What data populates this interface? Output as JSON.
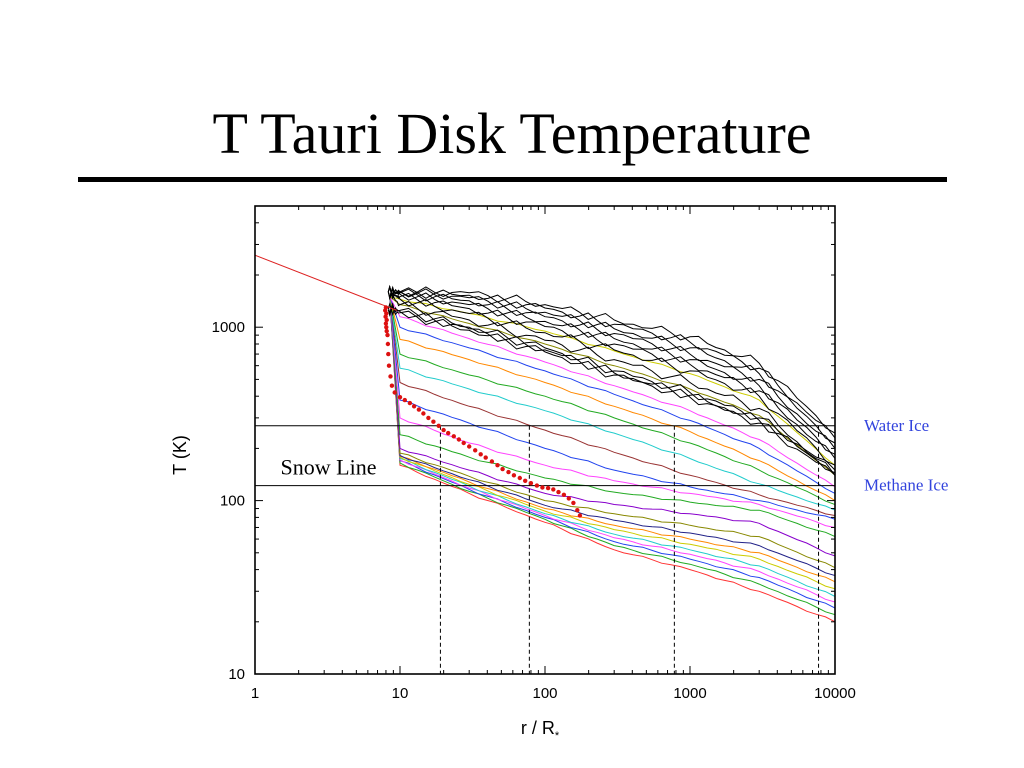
{
  "slide": {
    "title": "T Tauri Disk Temperature"
  },
  "colors": {
    "accent": "#3344dd",
    "marker": "#dd1111",
    "powerlaw": "#dd2222"
  },
  "chart_data": {
    "type": "line",
    "title": "",
    "xlabel": "r / R",
    "xlabel_subscript": "*",
    "ylabel": "T (K)",
    "xscale": "log",
    "yscale": "log",
    "xlim": [
      1,
      10000
    ],
    "ylim": [
      10,
      5000
    ],
    "x_ticks": [
      {
        "value": 1,
        "label": "1"
      },
      {
        "value": 10,
        "label": "10"
      },
      {
        "value": 100,
        "label": "100"
      },
      {
        "value": 1000,
        "label": "1000"
      },
      {
        "value": 10000,
        "label": "10000"
      }
    ],
    "y_ticks": [
      {
        "value": 10,
        "label": "10"
      },
      {
        "value": 100,
        "label": "100"
      },
      {
        "value": 1000,
        "label": "1000"
      }
    ],
    "hlines": [
      {
        "y": 270,
        "label": "Water Ice"
      },
      {
        "y": 122,
        "label": "Methane Ice"
      }
    ],
    "vlines": [
      19,
      78,
      780,
      7700
    ],
    "annotations": [
      {
        "text": "Snow Line",
        "x": 1.5,
        "y": 155
      }
    ],
    "powerlaw": {
      "x": [
        1,
        9.5
      ],
      "y": [
        2600,
        1250
      ]
    },
    "snow_line_points": [
      [
        8.0,
        1300
      ],
      [
        7.9,
        1250
      ],
      [
        8.05,
        1200
      ],
      [
        7.95,
        1150
      ],
      [
        8.1,
        1100
      ],
      [
        8.0,
        1050
      ],
      [
        8.05,
        1000
      ],
      [
        8.1,
        950
      ],
      [
        8.2,
        900
      ],
      [
        8.25,
        800
      ],
      [
        8.3,
        700
      ],
      [
        8.4,
        600
      ],
      [
        8.6,
        520
      ],
      [
        8.8,
        460
      ],
      [
        9.2,
        420
      ],
      [
        10.0,
        395
      ],
      [
        10.8,
        380
      ],
      [
        11.7,
        365
      ],
      [
        12.5,
        350
      ],
      [
        13.5,
        335
      ],
      [
        14.5,
        318
      ],
      [
        15.7,
        300
      ],
      [
        17.0,
        285
      ],
      [
        18.5,
        270
      ],
      [
        20.0,
        255
      ],
      [
        21.5,
        245
      ],
      [
        23.5,
        235
      ],
      [
        25.5,
        225
      ],
      [
        27.5,
        215
      ],
      [
        30.0,
        205
      ],
      [
        33.0,
        195
      ],
      [
        36.0,
        185
      ],
      [
        39.0,
        177
      ],
      [
        43.0,
        168
      ],
      [
        47.0,
        160
      ],
      [
        51.0,
        152
      ],
      [
        56.0,
        146
      ],
      [
        61.0,
        140
      ],
      [
        67.0,
        135
      ],
      [
        73.0,
        130
      ],
      [
        80.0,
        126
      ],
      [
        88.0,
        122
      ],
      [
        96.0,
        119
      ],
      [
        105.0,
        118
      ],
      [
        114.0,
        116
      ],
      [
        124.0,
        112
      ],
      [
        135.0,
        108
      ],
      [
        146.0,
        103
      ],
      [
        157.0,
        97
      ],
      [
        167.0,
        88
      ],
      [
        174.0,
        82
      ]
    ],
    "model_curves": [
      {
        "color": "#ff3333",
        "points": [
          [
            10,
            160
          ],
          [
            30,
            110
          ],
          [
            100,
            75
          ],
          [
            300,
            52
          ],
          [
            1000,
            40
          ],
          [
            3000,
            30
          ],
          [
            10000,
            20
          ]
        ]
      },
      {
        "color": "#22aa22",
        "points": [
          [
            10,
            165
          ],
          [
            30,
            113
          ],
          [
            100,
            78
          ],
          [
            300,
            55
          ],
          [
            1000,
            43
          ],
          [
            3000,
            33
          ],
          [
            10000,
            22
          ]
        ]
      },
      {
        "color": "#2244ee",
        "points": [
          [
            10,
            170
          ],
          [
            30,
            116
          ],
          [
            100,
            80
          ],
          [
            300,
            58
          ],
          [
            1000,
            46
          ],
          [
            3000,
            36
          ],
          [
            10000,
            24
          ]
        ]
      },
      {
        "color": "#ff44ff",
        "points": [
          [
            10,
            172
          ],
          [
            30,
            118
          ],
          [
            100,
            82
          ],
          [
            300,
            61
          ],
          [
            1000,
            49
          ],
          [
            3000,
            39
          ],
          [
            10000,
            26
          ]
        ]
      },
      {
        "color": "#22cccc",
        "points": [
          [
            10,
            175
          ],
          [
            30,
            121
          ],
          [
            100,
            84
          ],
          [
            300,
            64
          ],
          [
            1000,
            52
          ],
          [
            3000,
            42
          ],
          [
            10000,
            28
          ]
        ]
      },
      {
        "color": "#cccc00",
        "points": [
          [
            10,
            178
          ],
          [
            30,
            124
          ],
          [
            100,
            87
          ],
          [
            300,
            68
          ],
          [
            1000,
            56
          ],
          [
            3000,
            46
          ],
          [
            10000,
            31
          ]
        ]
      },
      {
        "color": "#ff8800",
        "points": [
          [
            10,
            180
          ],
          [
            30,
            128
          ],
          [
            100,
            90
          ],
          [
            300,
            72
          ],
          [
            1000,
            60
          ],
          [
            3000,
            50
          ],
          [
            10000,
            34
          ]
        ]
      },
      {
        "color": "#222288",
        "points": [
          [
            10,
            182
          ],
          [
            30,
            132
          ],
          [
            100,
            94
          ],
          [
            300,
            77
          ],
          [
            1000,
            65
          ],
          [
            3000,
            55
          ],
          [
            10000,
            37
          ]
        ]
      },
      {
        "color": "#888800",
        "points": [
          [
            10,
            188
          ],
          [
            30,
            138
          ],
          [
            100,
            100
          ],
          [
            300,
            84
          ],
          [
            1000,
            72
          ],
          [
            3000,
            62
          ],
          [
            10000,
            41
          ]
        ]
      },
      {
        "color": "#8800cc",
        "points": [
          [
            10,
            200
          ],
          [
            30,
            150
          ],
          [
            100,
            110
          ],
          [
            300,
            95
          ],
          [
            1000,
            84
          ],
          [
            3000,
            74
          ],
          [
            10000,
            48
          ]
        ]
      },
      {
        "color": "#22aa22",
        "points": [
          [
            10,
            240
          ],
          [
            30,
            178
          ],
          [
            100,
            135
          ],
          [
            300,
            112
          ],
          [
            1000,
            98
          ],
          [
            3000,
            88
          ],
          [
            10000,
            62
          ]
        ]
      },
      {
        "color": "#ff44ff",
        "points": [
          [
            10,
            300
          ],
          [
            30,
            215
          ],
          [
            100,
            160
          ],
          [
            300,
            130
          ],
          [
            1000,
            110
          ],
          [
            3000,
            95
          ],
          [
            10000,
            70
          ]
        ]
      },
      {
        "color": "#2244ee",
        "points": [
          [
            10,
            380
          ],
          [
            30,
            280
          ],
          [
            100,
            200
          ],
          [
            300,
            150
          ],
          [
            1000,
            120
          ],
          [
            3000,
            100
          ],
          [
            10000,
            78
          ]
        ]
      },
      {
        "color": "#993333",
        "points": [
          [
            10,
            480
          ],
          [
            30,
            350
          ],
          [
            100,
            255
          ],
          [
            300,
            190
          ],
          [
            1000,
            140
          ],
          [
            3000,
            108
          ],
          [
            10000,
            82
          ]
        ]
      },
      {
        "color": "#22cccc",
        "points": [
          [
            10,
            580
          ],
          [
            30,
            440
          ],
          [
            100,
            330
          ],
          [
            300,
            245
          ],
          [
            1000,
            175
          ],
          [
            3000,
            125
          ],
          [
            10000,
            88
          ]
        ]
      },
      {
        "color": "#22aa22",
        "points": [
          [
            10,
            700
          ],
          [
            30,
            530
          ],
          [
            100,
            400
          ],
          [
            300,
            300
          ],
          [
            1000,
            215
          ],
          [
            3000,
            150
          ],
          [
            10000,
            95
          ]
        ]
      },
      {
        "color": "#ff8800",
        "points": [
          [
            10,
            850
          ],
          [
            30,
            650
          ],
          [
            100,
            480
          ],
          [
            300,
            350
          ],
          [
            1000,
            250
          ],
          [
            3000,
            170
          ],
          [
            10000,
            100
          ]
        ]
      },
      {
        "color": "#2244ee",
        "points": [
          [
            10,
            1000
          ],
          [
            30,
            760
          ],
          [
            100,
            560
          ],
          [
            300,
            410
          ],
          [
            1000,
            290
          ],
          [
            3000,
            200
          ],
          [
            10000,
            110
          ]
        ]
      },
      {
        "color": "#ff44ff",
        "points": [
          [
            10,
            1150
          ],
          [
            30,
            860
          ],
          [
            100,
            630
          ],
          [
            300,
            460
          ],
          [
            1000,
            330
          ],
          [
            3000,
            225
          ],
          [
            10000,
            120
          ]
        ]
      },
      {
        "color": "#cccc00",
        "points": [
          [
            10,
            1450
          ],
          [
            30,
            1200
          ],
          [
            100,
            950
          ],
          [
            300,
            730
          ],
          [
            1000,
            540
          ],
          [
            3000,
            380
          ],
          [
            10000,
            160
          ]
        ]
      },
      {
        "color": "#888800",
        "points": [
          [
            10,
            1350
          ],
          [
            30,
            1050
          ],
          [
            100,
            800
          ],
          [
            300,
            600
          ],
          [
            1000,
            440
          ],
          [
            3000,
            310
          ],
          [
            10000,
            140
          ]
        ]
      }
    ],
    "black_curves": [
      {
        "points": [
          [
            8.3,
            1600
          ],
          [
            10,
            1350
          ],
          [
            30,
            1100
          ],
          [
            100,
            840
          ],
          [
            300,
            650
          ],
          [
            1000,
            480
          ],
          [
            3000,
            340
          ],
          [
            10000,
            140
          ]
        ]
      },
      {
        "points": [
          [
            8.3,
            1600
          ],
          [
            10,
            1450
          ],
          [
            30,
            1200
          ],
          [
            100,
            930
          ],
          [
            300,
            740
          ],
          [
            1000,
            560
          ],
          [
            3000,
            400
          ],
          [
            10000,
            160
          ]
        ]
      },
      {
        "points": [
          [
            8.3,
            1600
          ],
          [
            10,
            1500
          ],
          [
            30,
            1280
          ],
          [
            100,
            1010
          ],
          [
            300,
            800
          ],
          [
            1000,
            610
          ],
          [
            3000,
            430
          ],
          [
            10000,
            175
          ]
        ]
      },
      {
        "points": [
          [
            8.3,
            1600
          ],
          [
            10,
            1550
          ],
          [
            30,
            1350
          ],
          [
            100,
            1080
          ],
          [
            300,
            860
          ],
          [
            1000,
            650
          ],
          [
            3000,
            460
          ],
          [
            10000,
            185
          ]
        ]
      },
      {
        "points": [
          [
            8.3,
            1600
          ],
          [
            10,
            1580
          ],
          [
            30,
            1420
          ],
          [
            100,
            1150
          ],
          [
            300,
            920
          ],
          [
            1000,
            700
          ],
          [
            3000,
            500
          ],
          [
            10000,
            200
          ]
        ]
      },
      {
        "points": [
          [
            8.3,
            1600
          ],
          [
            10,
            1600
          ],
          [
            30,
            1480
          ],
          [
            100,
            1220
          ],
          [
            300,
            980
          ],
          [
            1000,
            760
          ],
          [
            3000,
            540
          ],
          [
            10000,
            215
          ]
        ]
      },
      {
        "points": [
          [
            8.3,
            1600
          ],
          [
            10,
            1600
          ],
          [
            30,
            1530
          ],
          [
            100,
            1290
          ],
          [
            300,
            1040
          ],
          [
            1000,
            820
          ],
          [
            3000,
            580
          ],
          [
            10000,
            230
          ]
        ]
      },
      {
        "points": [
          [
            8.3,
            1600
          ],
          [
            10,
            1600
          ],
          [
            30,
            1580
          ],
          [
            100,
            1350
          ],
          [
            300,
            1100
          ],
          [
            1000,
            880
          ],
          [
            3000,
            620
          ],
          [
            10000,
            245
          ]
        ]
      },
      {
        "points": [
          [
            8.3,
            1300
          ],
          [
            10,
            1250
          ],
          [
            30,
            1000
          ],
          [
            100,
            760
          ],
          [
            300,
            560
          ],
          [
            1000,
            420
          ],
          [
            3000,
            300
          ],
          [
            10000,
            150
          ]
        ]
      },
      {
        "points": [
          [
            8.3,
            1280
          ],
          [
            10,
            1230
          ],
          [
            30,
            980
          ],
          [
            100,
            740
          ],
          [
            300,
            545
          ],
          [
            1000,
            405
          ],
          [
            3000,
            290
          ],
          [
            10000,
            145
          ]
        ]
      },
      {
        "points": [
          [
            8.3,
            1260
          ],
          [
            10,
            1210
          ],
          [
            30,
            960
          ],
          [
            100,
            720
          ],
          [
            300,
            530
          ],
          [
            1000,
            395
          ],
          [
            3000,
            280
          ],
          [
            10000,
            140
          ]
        ]
      }
    ]
  }
}
